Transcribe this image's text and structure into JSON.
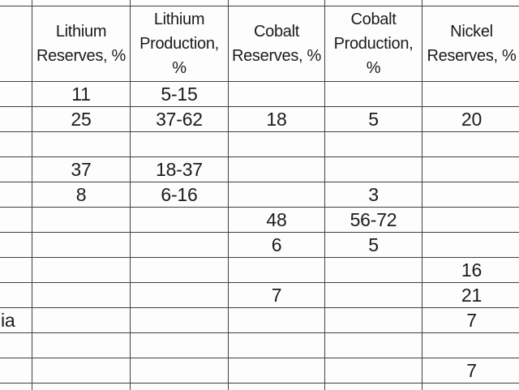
{
  "theme": {
    "grid": "#404040",
    "text": "#1b1b1b",
    "background": "#fdfdfd"
  },
  "table": {
    "description_note": "",
    "header": {
      "country": "",
      "lithium_reserves": [
        "Lithium",
        "Reserves, %"
      ],
      "lithium_production": [
        "Lithium",
        "Production,",
        "%"
      ],
      "cobalt_reserves": [
        "Cobalt",
        "Reserves, %"
      ],
      "cobalt_production": [
        "Cobalt",
        "Production,",
        "%"
      ],
      "nickel_reserves": [
        "Nickel",
        "Reserves, %"
      ]
    },
    "rows": [
      [
        "",
        "11",
        "5-15",
        "",
        "",
        ""
      ],
      [
        "",
        "25",
        "37-62",
        "18",
        "5",
        "20"
      ],
      [
        "",
        "",
        "",
        "",
        "",
        ""
      ],
      [
        "",
        "37",
        "18-37",
        "",
        "",
        ""
      ],
      [
        "",
        "8",
        "6-16",
        "",
        "3",
        ""
      ],
      [
        "",
        "",
        "",
        "48",
        "56-72",
        ""
      ],
      [
        "",
        "",
        "",
        "6",
        "5",
        ""
      ],
      [
        "",
        "",
        "",
        "",
        "",
        "16"
      ],
      [
        "",
        "",
        "",
        "7",
        "",
        "21"
      ],
      [
        "ia",
        "",
        "",
        "",
        "",
        "7"
      ],
      [
        "",
        "",
        "",
        "",
        "",
        ""
      ],
      [
        "",
        "",
        "",
        "",
        "",
        "7"
      ]
    ]
  }
}
